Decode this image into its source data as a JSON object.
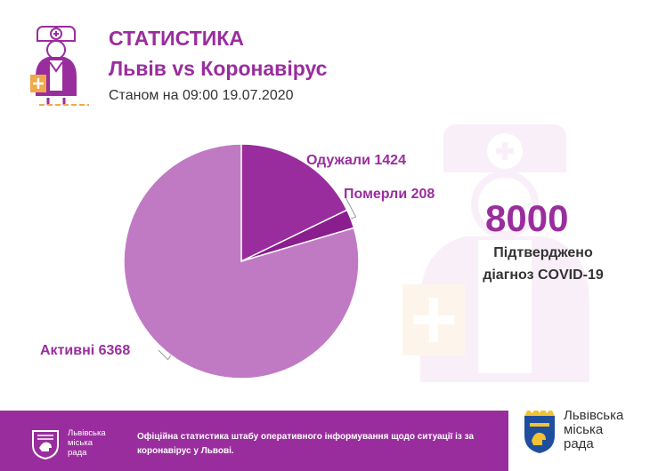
{
  "header": {
    "title": "СТАТИСТИКА",
    "subtitle": "Львів vs Коронавірус",
    "date": "Станом на 09:00 19.07.2020"
  },
  "colors": {
    "brand": "#9a2d9e",
    "recovered": "#9a2d9e",
    "deceased": "#8a1e8f",
    "active": "#c07ac4",
    "accent": "#f0a94a"
  },
  "icons": {
    "header": "doctor-icon",
    "watermark": "doctor-watermark-icon",
    "lviv_coat": "lviv-coat-of-arms-icon"
  },
  "chart_data": {
    "type": "pie",
    "categories": [
      "Одужали",
      "Померли",
      "Активні"
    ],
    "values": [
      1424,
      208,
      6368
    ],
    "labels": [
      "Одужали 1424",
      "Померли 208",
      "Активні 6368"
    ]
  },
  "summary": {
    "total": "8000",
    "desc_line1": "Підтверджено",
    "desc_line2": "діагноз COVID-19"
  },
  "footer": {
    "left_logo_line1": "Львівська",
    "left_logo_line2": "міська",
    "left_logo_line3": "рада",
    "note_line1": "Офіційна статистика штабу оперативного інформування щодо ситуації із за",
    "note_line2": "коронавірус у Львові.",
    "card_line1": "Львівська",
    "card_line2": "міська",
    "card_line3": "рада"
  }
}
